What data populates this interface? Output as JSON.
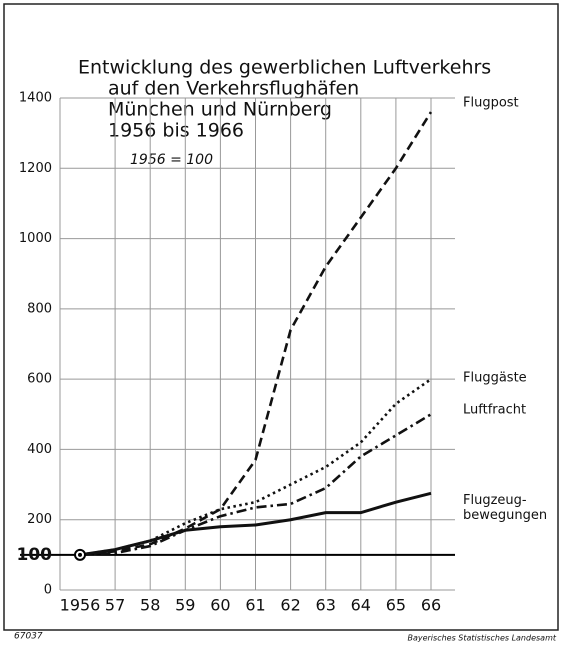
{
  "chart_data": {
    "type": "line",
    "title": [
      "Entwicklung des gewerblichen Luftverkehrs",
      "auf den Verkehrsflughäfen",
      "München und Nürnberg",
      "1956 bis 1966"
    ],
    "subtitle": "1956 = 100",
    "categories": [
      "1956",
      "57",
      "58",
      "59",
      "60",
      "61",
      "62",
      "63",
      "64",
      "65",
      "66"
    ],
    "series": [
      {
        "name": "Flugpost",
        "color": "#111111",
        "style": "dashed",
        "values": [
          100,
          110,
          130,
          175,
          230,
          370,
          740,
          920,
          1060,
          1200,
          1360
        ]
      },
      {
        "name": "Fluggäste",
        "color": "#111111",
        "style": "dotted",
        "values": [
          100,
          115,
          140,
          190,
          230,
          250,
          300,
          350,
          420,
          530,
          600
        ]
      },
      {
        "name": "Luftfracht",
        "color": "#111111",
        "style": "dashdot",
        "values": [
          100,
          105,
          125,
          170,
          210,
          235,
          245,
          290,
          380,
          440,
          500
        ]
      },
      {
        "name": "Flugzeug- bewegungen",
        "color": "#111111",
        "style": "solid",
        "values": [
          100,
          115,
          140,
          170,
          180,
          185,
          200,
          220,
          220,
          250,
          275
        ]
      }
    ],
    "ylim": [
      0,
      1400
    ],
    "yticks": [
      0,
      200,
      400,
      600,
      800,
      1000,
      1200,
      1400
    ],
    "reference_line": 100,
    "grid": true,
    "footer_left": "67037",
    "footer_right": "Bayerisches Statistisches Landesamt"
  }
}
